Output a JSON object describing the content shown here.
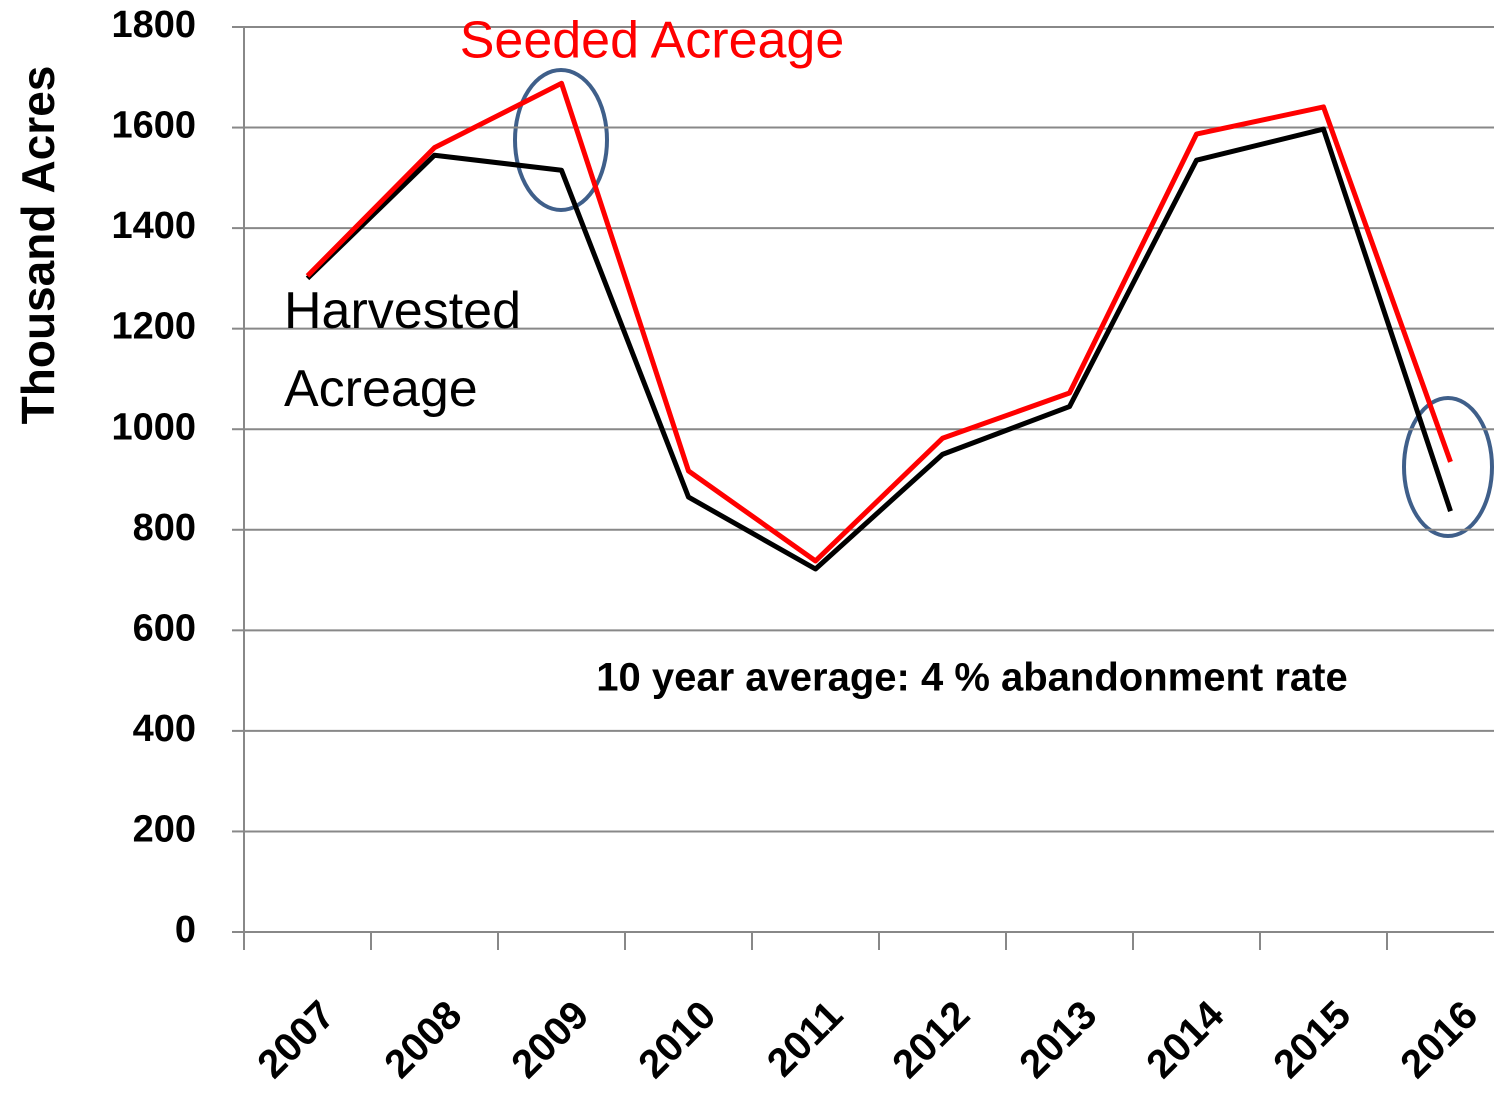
{
  "chart_data": {
    "type": "line",
    "y_label": "Thousand Acres",
    "annotation": "10 year average: 4 % abandonment rate",
    "categories": [
      "2007",
      "2008",
      "2009",
      "2010",
      "2011",
      "2012",
      "2013",
      "2014",
      "2015",
      "2016"
    ],
    "series": [
      {
        "name": "Harvested Acreage",
        "color": "#000000",
        "values": [
          1300,
          1545,
          1515,
          865,
          722,
          950,
          1045,
          1535,
          1597,
          837
        ]
      },
      {
        "name": "Seeded Acreage",
        "color": "#ff0000",
        "values": [
          1305,
          1560,
          1688,
          917,
          738,
          982,
          1072,
          1587,
          1641,
          935
        ]
      }
    ],
    "ylim": [
      0,
      1800
    ],
    "yticks": [
      0,
      200,
      400,
      600,
      800,
      1000,
      1200,
      1400,
      1600,
      1800
    ],
    "grid": true
  }
}
